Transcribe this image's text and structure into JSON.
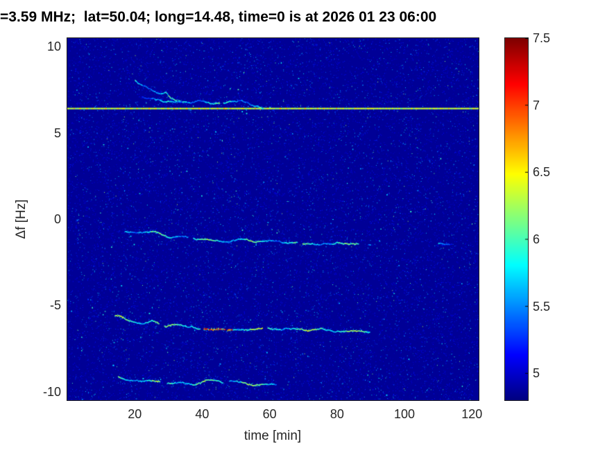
{
  "chart_data": {
    "type": "heatmap",
    "title": "=3.59 MHz;  lat=50.04; long=14.48, time=0 is at 2026 01 23 06:00",
    "xlabel": "time [min]",
    "ylabel": "Δf [Hz]",
    "xlim": [
      0,
      122
    ],
    "ylim": [
      -10.5,
      10.5
    ],
    "xticks": [
      20,
      40,
      60,
      80,
      100,
      120
    ],
    "yticks": [
      -10,
      -5,
      0,
      5,
      10
    ],
    "grid": false,
    "colorbar": {
      "min": 4.8,
      "max": 7.5,
      "ticks": [
        5,
        5.5,
        6,
        6.5,
        7,
        7.5
      ],
      "colormap": "jet",
      "position": "right"
    },
    "background_value": 4.86,
    "features": [
      {
        "name": "carrier-reference-line",
        "kind": "hline",
        "f": 6.42,
        "t_range": [
          0,
          122
        ],
        "intensity": 6.3
      },
      {
        "name": "doppler-trace-upper",
        "kind": "trace",
        "intensity": 5.7,
        "phase": 0,
        "points": [
          [
            20,
            8.1
          ],
          [
            22,
            7.75
          ],
          [
            25,
            7.4
          ],
          [
            27,
            7.3
          ],
          [
            29,
            7.35
          ],
          [
            31,
            7.0
          ],
          [
            33,
            6.8
          ],
          [
            36,
            6.75
          ],
          [
            39,
            6.8
          ],
          [
            42,
            6.7
          ],
          [
            45,
            6.65
          ],
          [
            48,
            6.8
          ],
          [
            51,
            6.95
          ],
          [
            53,
            6.85
          ],
          [
            56,
            6.65
          ],
          [
            58,
            6.55
          ],
          [
            60,
            6.5
          ]
        ]
      },
      {
        "name": "doppler-trace-upper-branch",
        "kind": "trace",
        "intensity": 5.5,
        "phase": 1,
        "points": [
          [
            22,
            7.15
          ],
          [
            25,
            6.95
          ],
          [
            28,
            6.85
          ],
          [
            31,
            6.8
          ],
          [
            34,
            6.9
          ]
        ]
      },
      {
        "name": "doppler-trace-mid",
        "kind": "trace",
        "intensity": 5.8,
        "phase": 2,
        "points": [
          [
            17,
            -0.7
          ],
          [
            22,
            -0.85
          ],
          [
            26,
            -0.8
          ],
          [
            30,
            -1.05
          ],
          [
            34,
            -0.95
          ],
          [
            38,
            -1.15
          ],
          [
            42,
            -1.05
          ],
          [
            46,
            -1.2
          ],
          [
            50,
            -1.15
          ],
          [
            55,
            -1.25
          ],
          [
            60,
            -1.2
          ],
          [
            65,
            -1.3
          ],
          [
            70,
            -1.3
          ],
          [
            75,
            -1.35
          ],
          [
            80,
            -1.3
          ],
          [
            85,
            -1.35
          ],
          [
            90,
            -1.4
          ]
        ]
      },
      {
        "name": "doppler-trace-mid-echo",
        "kind": "trace",
        "intensity": 5.4,
        "phase": 3,
        "points": [
          [
            110,
            -1.35
          ],
          [
            114,
            -1.4
          ]
        ]
      },
      {
        "name": "doppler-trace-low",
        "kind": "trace",
        "intensity": 6.0,
        "phase": 1,
        "points": [
          [
            14,
            -5.6
          ],
          [
            18,
            -5.75
          ],
          [
            22,
            -5.95
          ],
          [
            25,
            -5.8
          ],
          [
            27,
            -6.0
          ],
          [
            29,
            -6.2
          ],
          [
            31,
            -6.05
          ],
          [
            34,
            -6.1
          ],
          [
            37,
            -6.2
          ],
          [
            40,
            -6.25
          ],
          [
            43,
            -6.3
          ],
          [
            46,
            -6.25
          ],
          [
            49,
            -6.3
          ],
          [
            53,
            -6.3
          ],
          [
            57,
            -6.25
          ],
          [
            61,
            -6.35
          ],
          [
            65,
            -6.3
          ],
          [
            70,
            -6.4
          ],
          [
            75,
            -6.35
          ],
          [
            80,
            -6.4
          ],
          [
            85,
            -6.35
          ],
          [
            90,
            -6.45
          ]
        ],
        "hot": {
          "t1": 40,
          "t2": 49,
          "value": 7.05
        }
      },
      {
        "name": "doppler-trace-bottom",
        "kind": "trace",
        "intensity": 5.9,
        "phase": 2,
        "points": [
          [
            15,
            -9.1
          ],
          [
            18,
            -9.2
          ],
          [
            22,
            -9.35
          ],
          [
            26,
            -9.25
          ],
          [
            30,
            -9.4
          ],
          [
            34,
            -9.35
          ],
          [
            38,
            -9.5
          ],
          [
            42,
            -9.4
          ],
          [
            46,
            -9.5
          ],
          [
            50,
            -9.45
          ],
          [
            54,
            -9.55
          ],
          [
            58,
            -9.5
          ],
          [
            62,
            -9.55
          ]
        ]
      }
    ]
  }
}
